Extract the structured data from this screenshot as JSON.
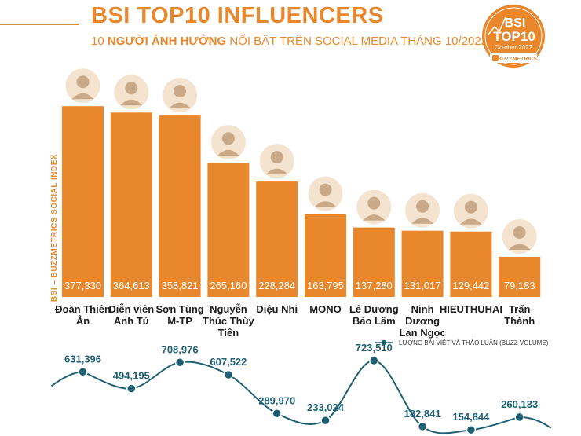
{
  "header": {
    "title": "BSI TOP10 INFLUENCERS",
    "subtitle_prefix": "10 ",
    "subtitle_bold": "NGƯỜI ẢNH HƯỞNG",
    "subtitle_rest": " NỔI BẬT TRÊN SOCIAL MEDIA THÁNG 10/2022"
  },
  "badge": {
    "line1": "BSI",
    "line2": "TOP10",
    "line3": "October 2022",
    "brand": "BUZZMETRICS"
  },
  "colors": {
    "accent": "#e8872c",
    "line": "#1f5f73",
    "text": "#1d1d1d"
  },
  "chart_data": [
    {
      "type": "bar",
      "ylabel": "BSI – BUZZMETRICS SOCIAL INDEX",
      "categories": [
        [
          "Đoàn Thiên",
          "Ân"
        ],
        [
          "Diễn viên",
          "Anh Tú"
        ],
        [
          "Sơn Tùng",
          "M-TP"
        ],
        [
          "Nguyễn",
          "Thúc Thùy",
          "Tiên"
        ],
        [
          "Diệu Nhi"
        ],
        [
          "MONO"
        ],
        [
          "Lê Dương",
          "Bảo Lâm"
        ],
        [
          "Ninh",
          "Dương",
          "Lan Ngọc"
        ],
        [
          "HIEUTHUHAI"
        ],
        [
          "Trấn",
          "Thành"
        ]
      ],
      "values": [
        377330,
        364613,
        358821,
        265160,
        228284,
        163795,
        137280,
        131017,
        129442,
        79183
      ],
      "value_labels": [
        "377,330",
        "364,613",
        "358,821",
        "265,160",
        "228,284",
        "163,795",
        "137,280",
        "131,017",
        "129,442",
        "79,183"
      ],
      "ylim": [
        0,
        390000
      ],
      "grid": false
    },
    {
      "type": "line",
      "legend": "LƯỢNG BÀI VIẾT VÀ THẢO LUẬN (BUZZ VOLUME)",
      "legend_position": "top-right",
      "values": [
        631396,
        494195,
        708976,
        607522,
        289970,
        233024,
        723510,
        182841,
        154844,
        260133
      ],
      "value_labels": [
        "631,396",
        "494,195",
        "708,976",
        "607,522",
        "289,970",
        "233,024",
        "723,510",
        "182,841",
        "154,844",
        "260,133"
      ]
    }
  ]
}
